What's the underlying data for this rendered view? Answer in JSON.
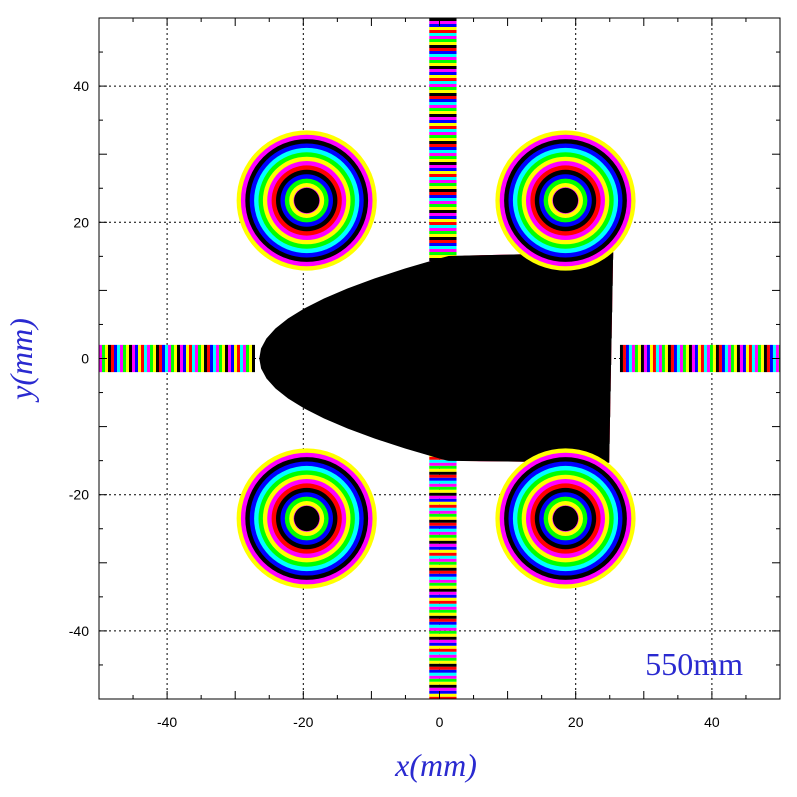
{
  "chart_data": {
    "type": "heatmap",
    "xlabel": "x(mm)",
    "ylabel": "y(mm)",
    "annotation": "550mm",
    "xlim": [
      -50,
      50
    ],
    "ylim": [
      -50,
      50
    ],
    "x_ticks": [
      -40,
      -20,
      0,
      20,
      40
    ],
    "y_ticks": [
      -40,
      -20,
      0,
      20,
      40
    ],
    "x_tick_labels": [
      "-40",
      "-20",
      "0",
      "20",
      "40"
    ],
    "y_tick_labels": [
      "-40",
      "-20",
      "0",
      "20",
      "40"
    ],
    "grid": true,
    "palette": [
      "#000000",
      "#0000ff",
      "#00ffff",
      "#00ff00",
      "#ffff00",
      "#ffffff",
      "#ff00ff",
      "#ff0000"
    ],
    "rings": [
      {
        "cx": -19.5,
        "cy": 23.2,
        "r": 10.3
      },
      {
        "cx": 18.5,
        "cy": 23.2,
        "r": 10.3
      },
      {
        "cx": -19.5,
        "cy": -23.5,
        "r": 10.3
      },
      {
        "cx": 18.5,
        "cy": -23.5,
        "r": 10.3
      }
    ],
    "bands": [
      {
        "orientation": "vertical",
        "x_range": [
          -1.5,
          2.5
        ],
        "y_range": [
          13.5,
          50
        ]
      },
      {
        "orientation": "vertical",
        "x_range": [
          -1.5,
          2.5
        ],
        "y_range": [
          -50,
          -14
        ]
      },
      {
        "orientation": "horizontal",
        "x_range": [
          -50,
          -27.5
        ],
        "y_range": [
          -2,
          2
        ]
      },
      {
        "orientation": "horizontal",
        "x_range": [
          26.5,
          50
        ],
        "y_range": [
          -2,
          2
        ]
      }
    ],
    "central_region": {
      "x_range": [
        -26.5,
        25.5
      ],
      "y_range": [
        -15,
        15
      ],
      "vertex_x": -25
    }
  }
}
